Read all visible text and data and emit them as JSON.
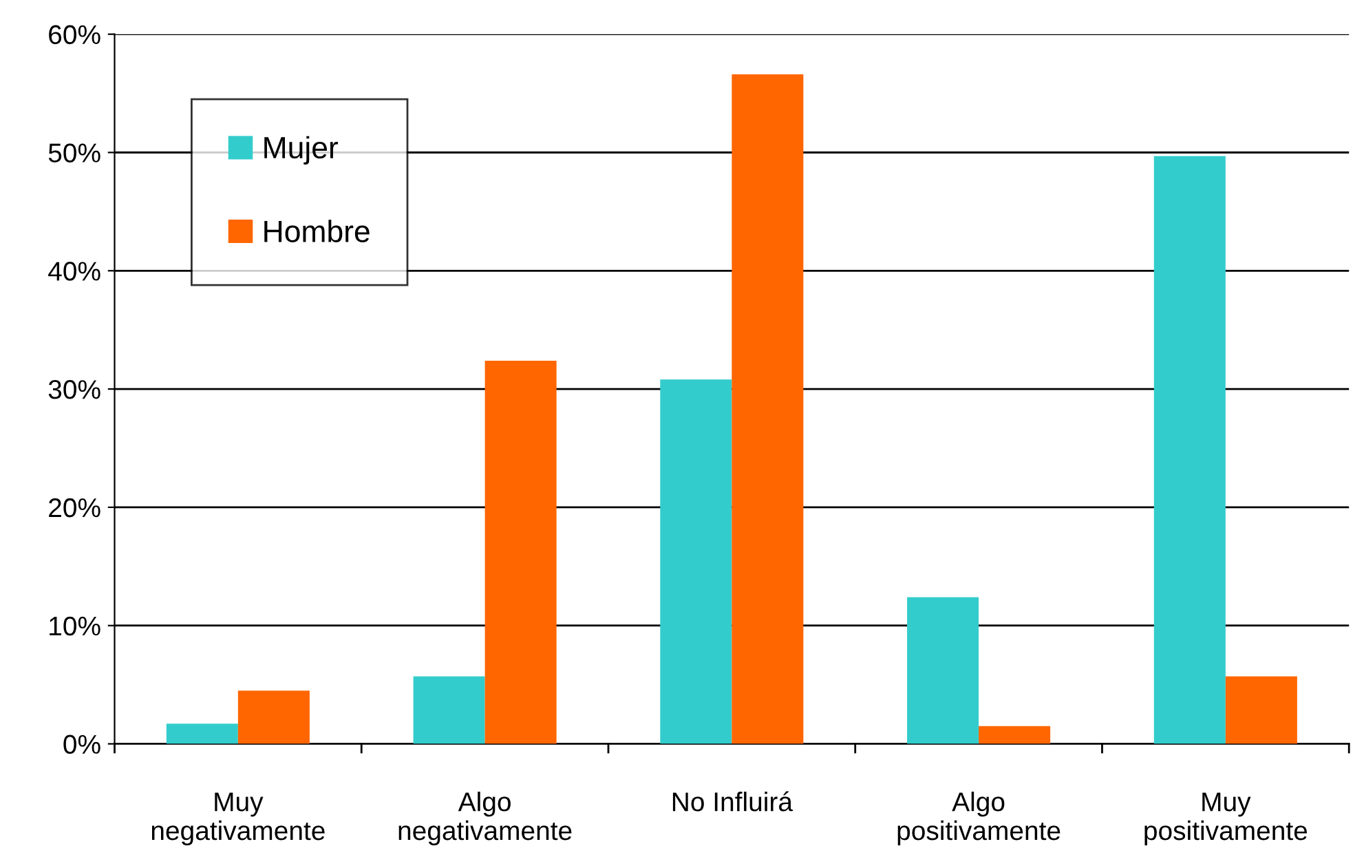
{
  "chart_data": {
    "type": "bar",
    "categories": [
      "Muy\nnegativamente",
      "Algo\nnegativamente",
      "No Influirá",
      "Algo\npositivamente",
      "Muy\npositivamente"
    ],
    "series": [
      {
        "name": "Mujer",
        "color": "#33cccc",
        "values": [
          1.7,
          5.7,
          30.8,
          12.4,
          49.7
        ]
      },
      {
        "name": "Hombre",
        "color": "#ff6600",
        "values": [
          4.5,
          32.4,
          56.6,
          1.5,
          5.7
        ]
      }
    ],
    "ylim": [
      0,
      60
    ],
    "yticks": [
      {
        "value": 0,
        "label": "0%"
      },
      {
        "value": 10,
        "label": "10%"
      },
      {
        "value": 20,
        "label": "20%"
      },
      {
        "value": 30,
        "label": "30%"
      },
      {
        "value": 40,
        "label": "40%"
      },
      {
        "value": 50,
        "label": "50%"
      },
      {
        "value": 60,
        "label": "60%"
      }
    ],
    "grid": "y",
    "legend": "top left"
  }
}
